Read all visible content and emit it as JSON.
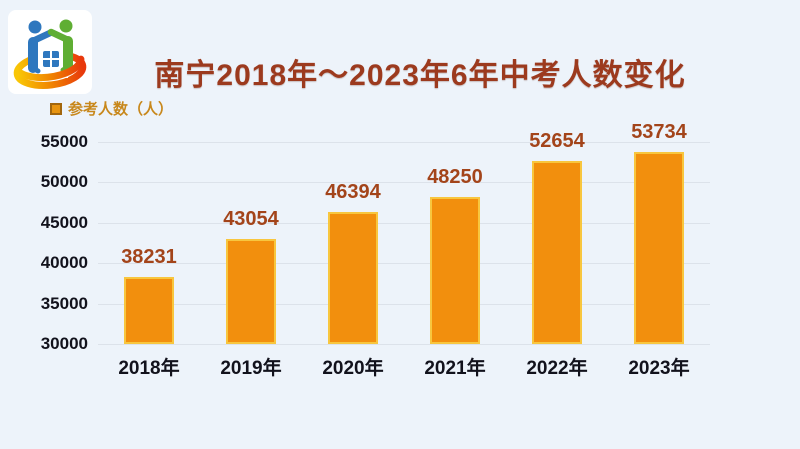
{
  "header": {
    "title": "南宁2018年～2023年6年中考人数变化"
  },
  "legend": {
    "label": "参考人数（人）"
  },
  "logo": {
    "icon": "family-house-logo-icon",
    "colors": {
      "person_left": "#2E77BE",
      "person_right": "#5FAE33",
      "swoosh_start": "#F9C606",
      "swoosh_mid": "#F08300",
      "swoosh_end": "#E8380C",
      "window": "#2E77BE",
      "background": "#FFFFFF"
    }
  },
  "chart_data": {
    "type": "bar",
    "title": "南宁2018年～2023年6年中考人数变化",
    "legend_entries": [
      "参考人数（人）"
    ],
    "legend_position": "top-left",
    "categories": [
      "2018年",
      "2019年",
      "2020年",
      "2021年",
      "2022年",
      "2023年"
    ],
    "values": [
      38231,
      43054,
      46394,
      48250,
      52654,
      53734
    ],
    "xlabel": "",
    "ylabel": "",
    "ylim": [
      30000,
      55000
    ],
    "yticks": [
      30000,
      35000,
      40000,
      45000,
      50000,
      55000
    ],
    "grid": true,
    "colors": {
      "bar_fill": "#F28F0D",
      "bar_border": "#F8C63E",
      "value_label": "#A3441A",
      "axis_label": "#12121C",
      "title": "#9C3A1E",
      "legend_text": "#C8881C",
      "gridline": "#DCE2EA",
      "background": "#EDF3FA"
    }
  }
}
